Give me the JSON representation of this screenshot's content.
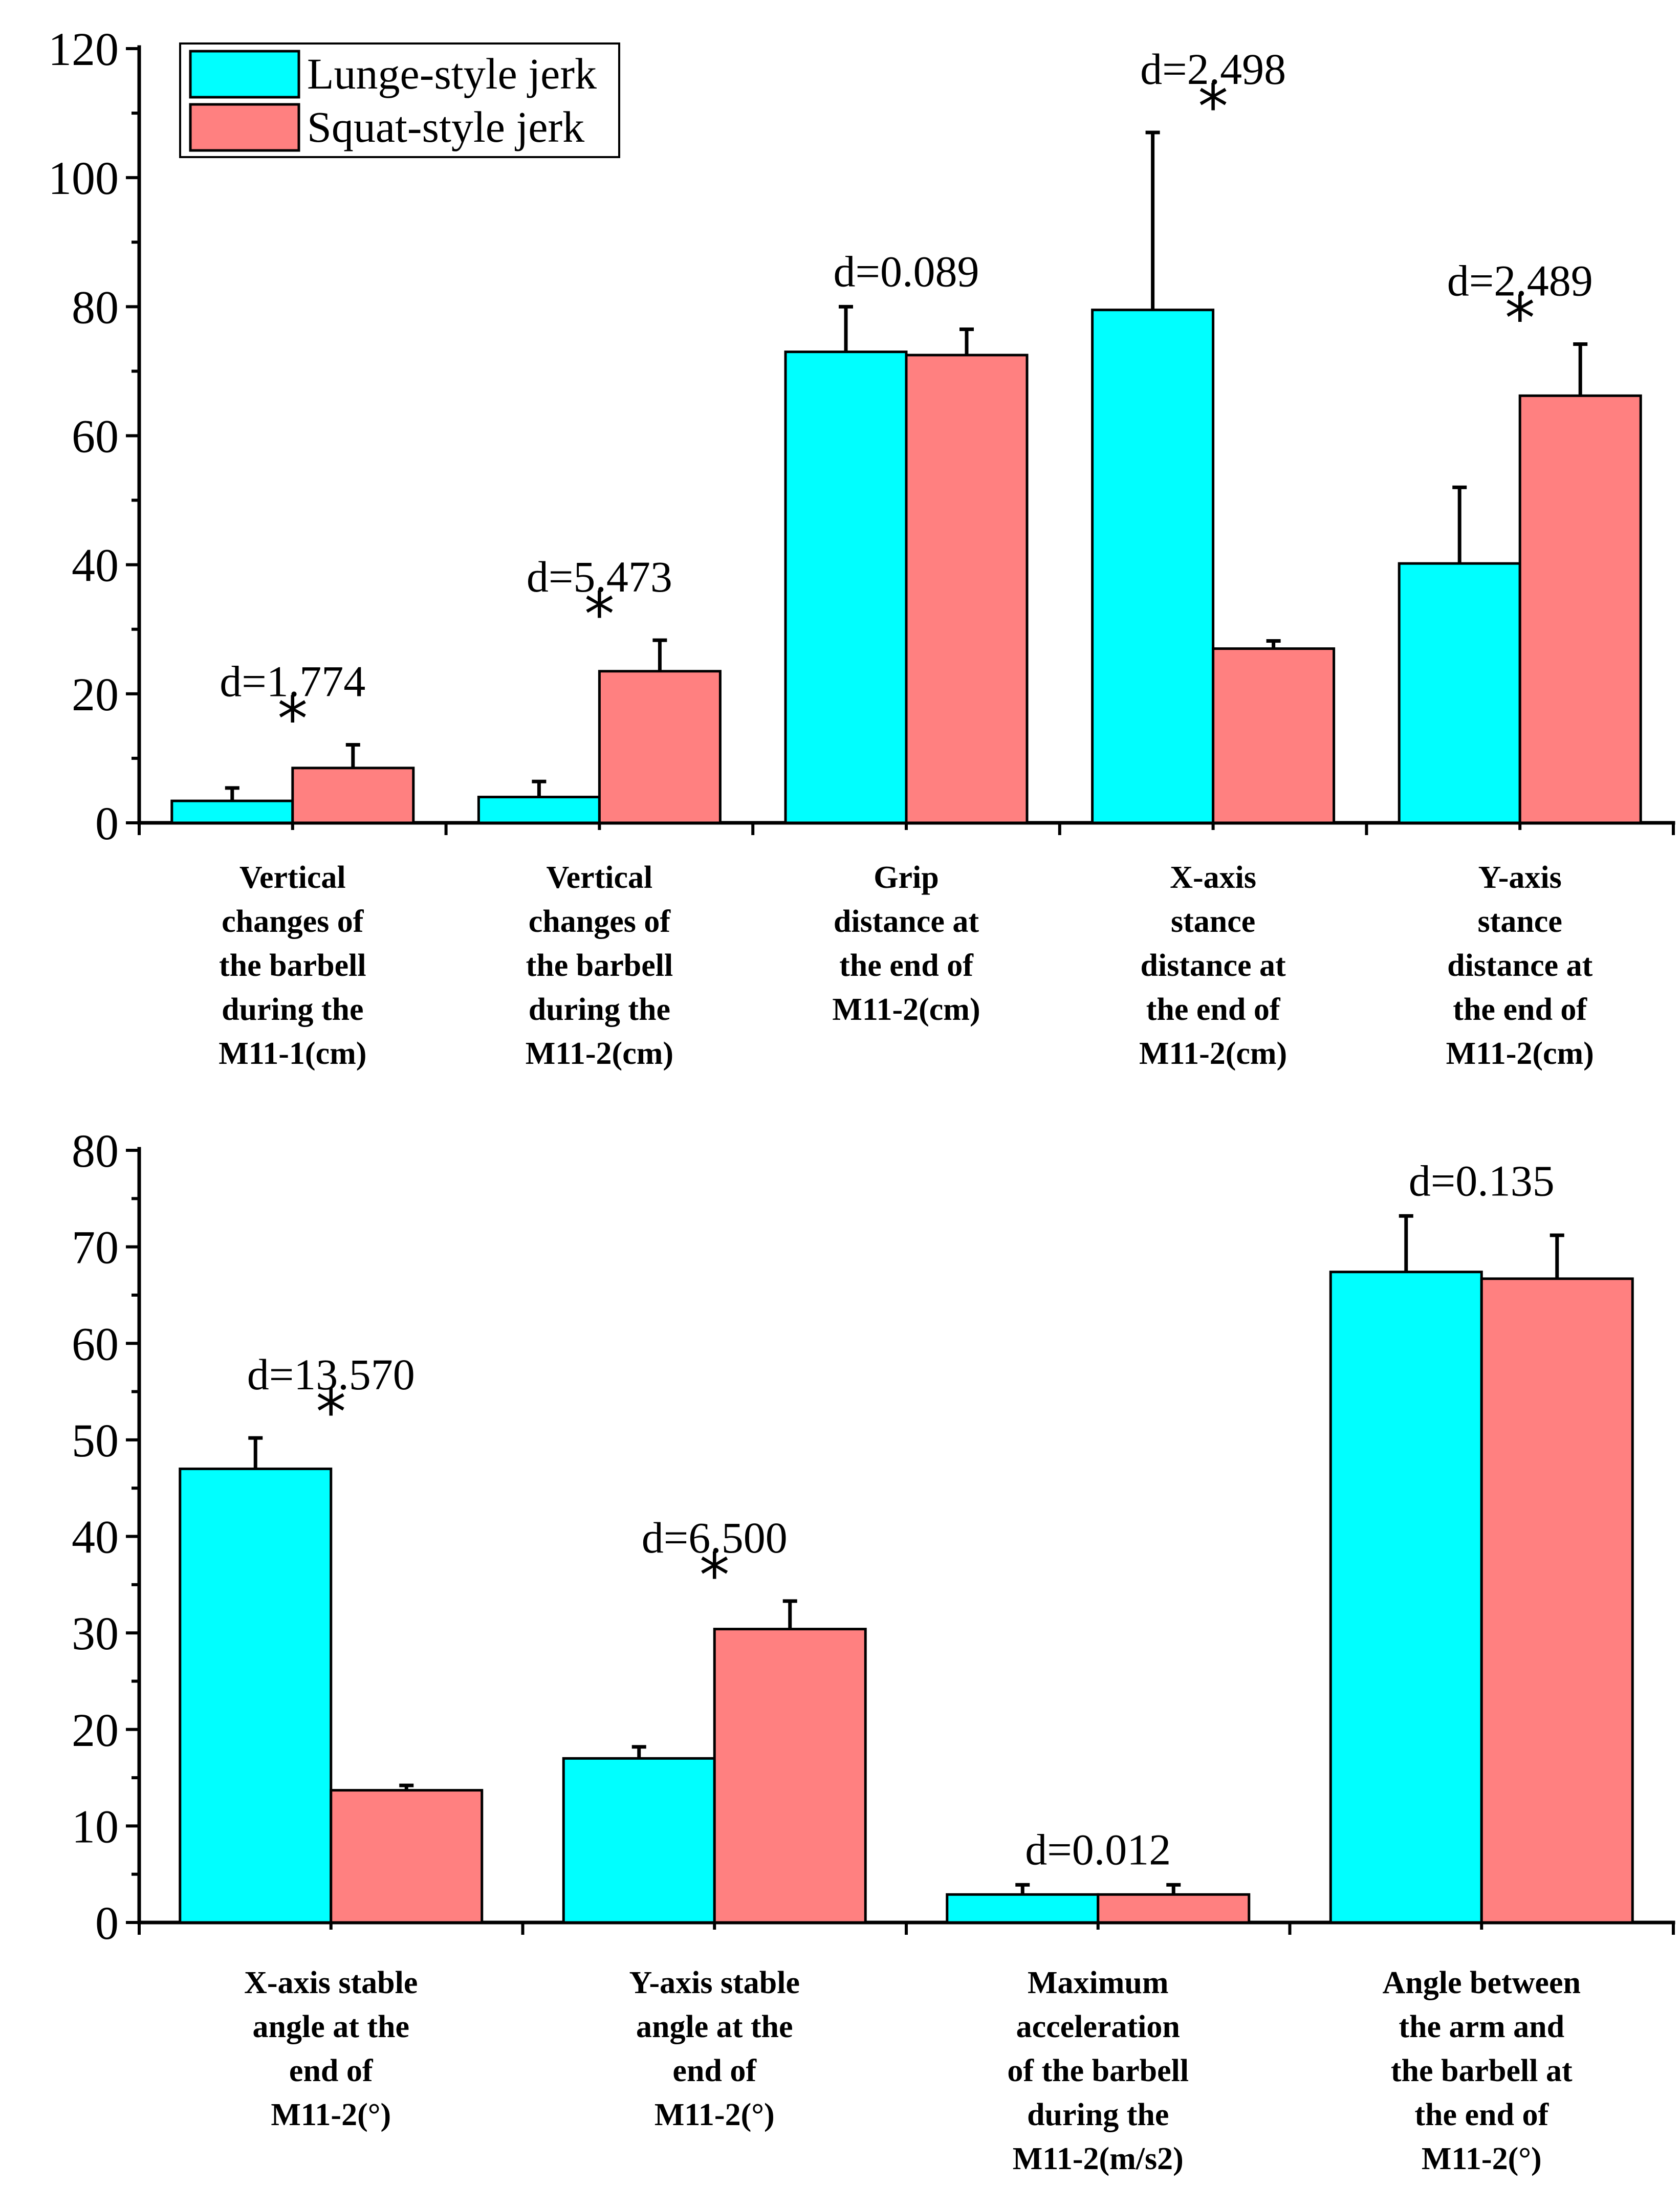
{
  "colors": {
    "lunge": "#00FFFF",
    "squat": "#FF8080"
  },
  "legend": {
    "items": [
      {
        "label": "Lunge-style jerk",
        "color": "#00FFFF"
      },
      {
        "label": "Squat-style jerk",
        "color": "#FF8080"
      }
    ]
  },
  "chart_data": [
    {
      "type": "bar",
      "title": "",
      "xlabel": "",
      "ylabel": "",
      "ylim": [
        0,
        120
      ],
      "yticks": [
        0,
        20,
        40,
        60,
        80,
        100,
        120
      ],
      "legend_position": "top-left",
      "categories": [
        "Vertical changes of the barbell during the M11-1(cm)",
        "Vertical changes of the barbell during the M11-2(cm)",
        "Grip distance at the end of M11-2(cm)",
        "X-axis stance distance at the end of M11-2(cm)",
        "Y-axis stance distance at the end of M11-2(cm)"
      ],
      "category_lines": [
        [
          "Vertical",
          "changes of",
          "the barbell",
          "during the",
          "M11-1(cm)"
        ],
        [
          "Vertical",
          "changes of",
          "the barbell",
          "during the",
          "M11-2(cm)"
        ],
        [
          "Grip",
          "distance at",
          "the end of",
          "M11-2(cm)"
        ],
        [
          "X-axis",
          "stance",
          "distance at",
          "the end of",
          "M11-2(cm)"
        ],
        [
          "Y-axis",
          "stance",
          "distance at",
          "the end of",
          "M11-2(cm)"
        ]
      ],
      "series": [
        {
          "name": "Lunge-style jerk",
          "values": [
            3.4,
            4.0,
            73.0,
            79.5,
            40.2
          ],
          "errors": [
            2.0,
            2.4,
            7.0,
            27.5,
            11.8
          ]
        },
        {
          "name": "Squat-style jerk",
          "values": [
            8.5,
            23.5,
            72.5,
            27.0,
            66.2
          ],
          "errors": [
            3.6,
            4.8,
            4.0,
            1.2,
            8.0
          ]
        }
      ],
      "annotations": [
        {
          "text": "d=1.774",
          "star": true
        },
        {
          "text": "d=5.473",
          "star": true
        },
        {
          "text": "d=0.089",
          "star": false
        },
        {
          "text": "d=2.498",
          "star": true
        },
        {
          "text": "d=2.489",
          "star": true
        }
      ],
      "star_symbol": "*"
    },
    {
      "type": "bar",
      "title": "",
      "xlabel": "",
      "ylabel": "",
      "ylim": [
        0,
        80
      ],
      "yticks": [
        0,
        10,
        20,
        30,
        40,
        50,
        60,
        70,
        80
      ],
      "categories": [
        "X-axis stable angle at the end of M11-2(°)",
        "Y-axis stable angle at the end of M11-2(°)",
        "Maximum acceleration of the barbell during the M11-2(m/s2)",
        "Angle between the arm and the barbell at the end of M11-2(°)"
      ],
      "category_lines": [
        [
          "X-axis stable",
          "angle at the",
          "end of",
          "M11-2(°)"
        ],
        [
          "Y-axis stable",
          "angle at the",
          "end of",
          "M11-2(°)"
        ],
        [
          "Maximum",
          "acceleration",
          "of the barbell",
          "during the",
          "M11-2(m/s2)"
        ],
        [
          "Angle between",
          "the arm and",
          "the barbell at",
          "the end of",
          "M11-2(°)"
        ]
      ],
      "series": [
        {
          "name": "Lunge-style jerk",
          "values": [
            47.0,
            17.0,
            2.9,
            67.4
          ],
          "errors": [
            3.2,
            1.2,
            1.0,
            5.8
          ]
        },
        {
          "name": "Squat-style jerk",
          "values": [
            13.7,
            30.4,
            2.9,
            66.7
          ],
          "errors": [
            0.5,
            2.9,
            1.0,
            4.5
          ]
        }
      ],
      "annotations": [
        {
          "text": "d=13.570",
          "star": true
        },
        {
          "text": "d=6.500",
          "star": true
        },
        {
          "text": "d=0.012",
          "star": false
        },
        {
          "text": "d=0.135",
          "star": false
        }
      ],
      "star_symbol": "*"
    }
  ]
}
